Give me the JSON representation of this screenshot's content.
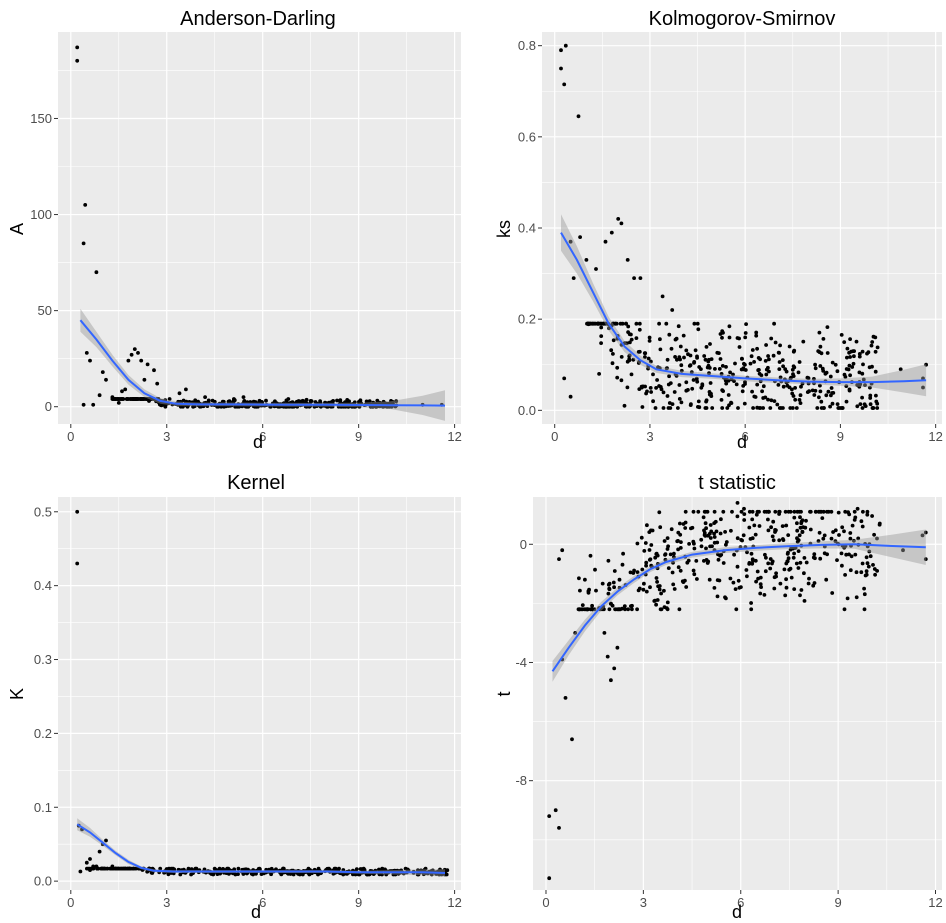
{
  "colors": {
    "panel_background": "#ebebeb",
    "grid_major": "#ffffff",
    "points": "#000000",
    "smooth_line": "#3366ff",
    "ribbon": "#999999"
  },
  "chart_data": [
    {
      "type": "scatter",
      "title": "Anderson-Darling",
      "xlabel": "d",
      "ylabel": "A",
      "xlim": [
        -0.4,
        12.2
      ],
      "ylim": [
        -9,
        195
      ],
      "xticks": [
        0,
        3,
        6,
        9,
        12
      ],
      "yticks": [
        0,
        50,
        100,
        150
      ],
      "grid": true,
      "legend": "none",
      "smooth": {
        "x": [
          0.3,
          0.8,
          1.3,
          1.8,
          2.3,
          2.8,
          3.3,
          4,
          5,
          6,
          7,
          8,
          9,
          10,
          11,
          11.7
        ],
        "y": [
          45,
          35,
          24,
          14,
          7,
          3,
          1.5,
          1.2,
          1.2,
          1.1,
          1,
          1,
          0.9,
          0.8,
          0.7,
          0.6
        ],
        "se": [
          6,
          4,
          3,
          2.5,
          2,
          1.5,
          1.2,
          1,
          1,
          1,
          1,
          1,
          1.2,
          2,
          5,
          8
        ]
      },
      "points": [
        [
          0.2,
          187
        ],
        [
          0.2,
          180
        ],
        [
          0.45,
          105
        ],
        [
          0.4,
          85
        ],
        [
          0.8,
          70
        ],
        [
          0.5,
          28
        ],
        [
          0.6,
          24
        ],
        [
          0.4,
          1
        ],
        [
          0.7,
          1
        ],
        [
          1.0,
          18
        ],
        [
          1.1,
          14
        ],
        [
          0.9,
          6
        ],
        [
          1.3,
          5
        ],
        [
          1.6,
          8
        ],
        [
          1.8,
          24
        ],
        [
          1.9,
          27
        ],
        [
          2.0,
          30
        ],
        [
          2.1,
          28
        ],
        [
          2.2,
          24
        ],
        [
          2.4,
          22
        ],
        [
          2.6,
          19
        ],
        [
          2.3,
          14
        ],
        [
          1.7,
          9
        ],
        [
          1.5,
          2
        ],
        [
          2.7,
          12
        ],
        [
          3.4,
          7
        ],
        [
          3.6,
          9
        ],
        [
          4.2,
          5
        ],
        [
          5.1,
          4
        ],
        [
          5.4,
          5
        ],
        [
          6.8,
          4
        ],
        [
          7.5,
          3
        ],
        [
          8.2,
          3
        ],
        [
          9.6,
          2
        ],
        [
          10.0,
          2
        ],
        [
          11.0,
          1
        ],
        [
          11.6,
          1
        ]
      ],
      "band": {
        "x": [
          1.2,
          10.2
        ],
        "y": [
          0,
          4
        ],
        "n": 420
      }
    },
    {
      "type": "scatter",
      "title": "Kolmogorov-Smirnov",
      "xlabel": "d",
      "ylabel": "ks",
      "xlim": [
        -0.4,
        12.2
      ],
      "ylim": [
        -0.03,
        0.83
      ],
      "xticks": [
        0,
        3,
        6,
        9,
        12
      ],
      "yticks": [
        0.0,
        0.2,
        0.4,
        0.6,
        0.8
      ],
      "ytick_labels": [
        "0.0",
        "0.2",
        "0.4",
        "0.6",
        "0.8"
      ],
      "grid": true,
      "legend": "none",
      "smooth": {
        "x": [
          0.2,
          0.7,
          1.2,
          1.7,
          2.2,
          2.7,
          3.2,
          4,
          5,
          6,
          7,
          8,
          9,
          10,
          11,
          11.7
        ],
        "y": [
          0.39,
          0.33,
          0.26,
          0.19,
          0.14,
          0.11,
          0.09,
          0.08,
          0.075,
          0.07,
          0.066,
          0.063,
          0.062,
          0.062,
          0.064,
          0.066
        ],
        "se": [
          0.04,
          0.03,
          0.02,
          0.015,
          0.012,
          0.01,
          0.008,
          0.007,
          0.006,
          0.006,
          0.006,
          0.006,
          0.008,
          0.012,
          0.025,
          0.035
        ]
      },
      "points": [
        [
          0.2,
          0.79
        ],
        [
          0.35,
          0.8
        ],
        [
          0.2,
          0.75
        ],
        [
          0.3,
          0.715
        ],
        [
          0.75,
          0.645
        ],
        [
          0.5,
          0.37
        ],
        [
          0.8,
          0.38
        ],
        [
          0.6,
          0.29
        ],
        [
          0.3,
          0.07
        ],
        [
          0.5,
          0.03
        ],
        [
          1.0,
          0.33
        ],
        [
          1.3,
          0.31
        ],
        [
          1.6,
          0.37
        ],
        [
          1.8,
          0.39
        ],
        [
          2.0,
          0.42
        ],
        [
          2.1,
          0.41
        ],
        [
          2.3,
          0.33
        ],
        [
          2.5,
          0.29
        ],
        [
          2.7,
          0.29
        ],
        [
          3.4,
          0.25
        ],
        [
          3.7,
          0.22
        ],
        [
          4.4,
          0.19
        ],
        [
          5.3,
          0.17
        ],
        [
          6.0,
          0.16
        ],
        [
          7.4,
          0.14
        ],
        [
          8.3,
          0.13
        ],
        [
          9.4,
          0.13
        ],
        [
          10.0,
          0.15
        ],
        [
          10.1,
          0.16
        ],
        [
          10.9,
          0.09
        ],
        [
          11.7,
          0.1
        ],
        [
          11.6,
          0.07
        ],
        [
          11.6,
          0.05
        ],
        [
          1.4,
          0.08
        ],
        [
          2.2,
          0.01
        ],
        [
          3.1,
          0.02
        ]
      ],
      "band": {
        "x": [
          1.0,
          10.2
        ],
        "y": [
          0.005,
          0.19
        ],
        "n": 460
      }
    },
    {
      "type": "scatter",
      "title": "Kernel",
      "xlabel": "d",
      "ylabel": "K",
      "xlim": [
        -0.4,
        12.2
      ],
      "ylim": [
        -0.012,
        0.52
      ],
      "xticks": [
        0,
        3,
        6,
        9,
        12
      ],
      "yticks": [
        0.0,
        0.1,
        0.2,
        0.3,
        0.4,
        0.5
      ],
      "ytick_labels": [
        "0.0",
        "0.1",
        "0.2",
        "0.3",
        "0.4",
        "0.5"
      ],
      "grid": true,
      "legend": "none",
      "smooth": {
        "x": [
          0.2,
          0.6,
          1.0,
          1.4,
          1.8,
          2.2,
          2.6,
          3.2,
          4,
          5,
          6,
          7,
          8,
          9,
          10,
          11,
          11.7
        ],
        "y": [
          0.077,
          0.066,
          0.052,
          0.038,
          0.026,
          0.018,
          0.014,
          0.013,
          0.013,
          0.013,
          0.013,
          0.013,
          0.013,
          0.012,
          0.012,
          0.012,
          0.011
        ],
        "se": [
          0.008,
          0.006,
          0.004,
          0.003,
          0.003,
          0.002,
          0.002,
          0.002,
          0.002,
          0.002,
          0.002,
          0.002,
          0.002,
          0.002,
          0.003,
          0.004,
          0.005
        ]
      },
      "points": [
        [
          0.2,
          0.5
        ],
        [
          0.2,
          0.43
        ],
        [
          0.25,
          0.075
        ],
        [
          0.35,
          0.07
        ],
        [
          0.3,
          0.013
        ],
        [
          0.5,
          0.025
        ],
        [
          0.6,
          0.03
        ],
        [
          0.8,
          0.02
        ],
        [
          1.0,
          0.05
        ],
        [
          1.1,
          0.055
        ],
        [
          0.9,
          0.04
        ],
        [
          0.6,
          0.015
        ],
        [
          1.3,
          0.02
        ],
        [
          0.7,
          0.02
        ],
        [
          11.7,
          0.009
        ],
        [
          10.9,
          0.013
        ]
      ],
      "band": {
        "x": [
          0.5,
          11.8
        ],
        "y": [
          0.009,
          0.017
        ],
        "n": 480
      }
    },
    {
      "type": "scatter",
      "title": "t statistic",
      "xlabel": "d",
      "ylabel": "t",
      "xlim": [
        -0.4,
        12.2
      ],
      "ylim": [
        -11.7,
        1.6
      ],
      "xticks": [
        0,
        3,
        6,
        9,
        12
      ],
      "yticks": [
        -8,
        -4,
        0
      ],
      "grid": true,
      "legend": "none",
      "smooth": {
        "x": [
          0.2,
          0.7,
          1.2,
          1.7,
          2.2,
          2.7,
          3.2,
          3.7,
          4.5,
          5.5,
          6.5,
          7.5,
          8.5,
          9.5,
          10.5,
          11.7
        ],
        "y": [
          -4.3,
          -3.5,
          -2.75,
          -2.1,
          -1.6,
          -1.2,
          -0.85,
          -0.6,
          -0.35,
          -0.2,
          -0.12,
          -0.06,
          -0.02,
          0,
          -0.05,
          -0.1
        ],
        "se": [
          0.35,
          0.25,
          0.2,
          0.15,
          0.13,
          0.12,
          0.1,
          0.1,
          0.1,
          0.1,
          0.1,
          0.1,
          0.12,
          0.15,
          0.35,
          0.6
        ]
      },
      "points": [
        [
          0.1,
          -11.3
        ],
        [
          0.1,
          -9.2
        ],
        [
          0.3,
          -9.0
        ],
        [
          0.4,
          -9.6
        ],
        [
          0.8,
          -6.6
        ],
        [
          0.6,
          -5.2
        ],
        [
          0.5,
          -3.9
        ],
        [
          0.9,
          -3.0
        ],
        [
          0.4,
          -0.5
        ],
        [
          0.5,
          -0.2
        ],
        [
          1.2,
          -1.2
        ],
        [
          1.8,
          -3.0
        ],
        [
          2.0,
          -4.6
        ],
        [
          2.1,
          -4.2
        ],
        [
          2.2,
          -3.5
        ],
        [
          1.9,
          -3.8
        ],
        [
          5.9,
          1.4
        ],
        [
          6.1,
          1.2
        ],
        [
          8.4,
          1.1
        ],
        [
          9.6,
          1.2
        ],
        [
          9.9,
          1.0
        ],
        [
          9.8,
          -1.5
        ],
        [
          10.2,
          -0.9
        ],
        [
          11.7,
          0.4
        ],
        [
          11.7,
          -0.5
        ],
        [
          11.6,
          0.3
        ],
        [
          11.0,
          -0.2
        ]
      ],
      "band": {
        "x": [
          1.0,
          10.3
        ],
        "y": [
          -2.2,
          1.1
        ],
        "n": 470
      }
    }
  ]
}
